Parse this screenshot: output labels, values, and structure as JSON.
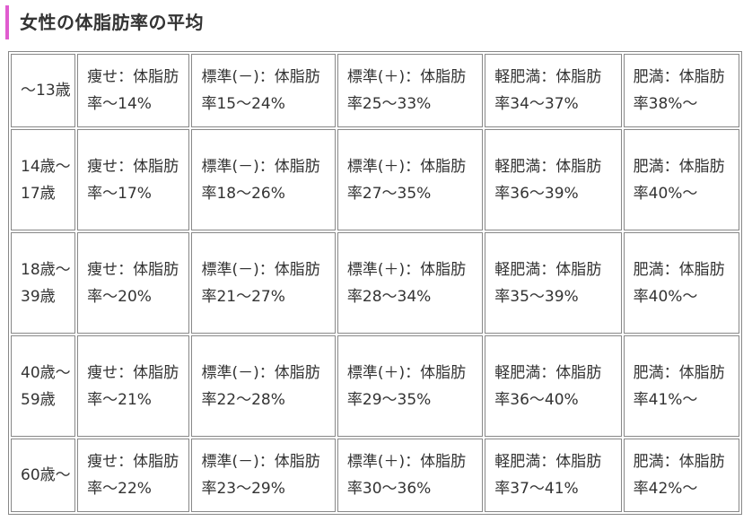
{
  "title": "女性の体脂肪率の平均",
  "rows": [
    {
      "age": "～13歳",
      "cells": [
        "痩せ：体脂肪率～14%",
        "標準(－)：体脂肪率15～24%",
        "標準(＋)：体脂肪率25～33%",
        "軽肥満：体脂肪率34～37%",
        "肥満：体脂肪率38%～"
      ]
    },
    {
      "age": "14歳～17歳",
      "cells": [
        "痩せ：体脂肪率～17%",
        "標準(－)：体脂肪率18～26%",
        "標準(＋)：体脂肪率27～35%",
        "軽肥満：体脂肪率36～39%",
        "肥満：体脂肪率40%～"
      ]
    },
    {
      "age": "18歳～39歳",
      "cells": [
        "痩せ：体脂肪率～20%",
        "標準(－)：体脂肪率21～27%",
        "標準(＋)：体脂肪率28～34%",
        "軽肥満：体脂肪率35～39%",
        "肥満：体脂肪率40%～"
      ]
    },
    {
      "age": "40歳～59歳",
      "cells": [
        "痩せ：体脂肪率～21%",
        "標準(－)：体脂肪率22～28%",
        "標準(＋)：体脂肪率29～35%",
        "軽肥満：体脂肪率36～40%",
        "肥満：体脂肪率41%～"
      ]
    },
    {
      "age": "60歳～",
      "cells": [
        "痩せ：体脂肪率～22%",
        "標準(－)：体脂肪率23～29%",
        "標準(＋)：体脂肪率30～36%",
        "軽肥満：体脂肪率37～41%",
        "肥満：体脂肪率42%～"
      ]
    }
  ],
  "colors": {
    "accent": "#e05ccf",
    "border": "#888888",
    "text": "#333333"
  }
}
